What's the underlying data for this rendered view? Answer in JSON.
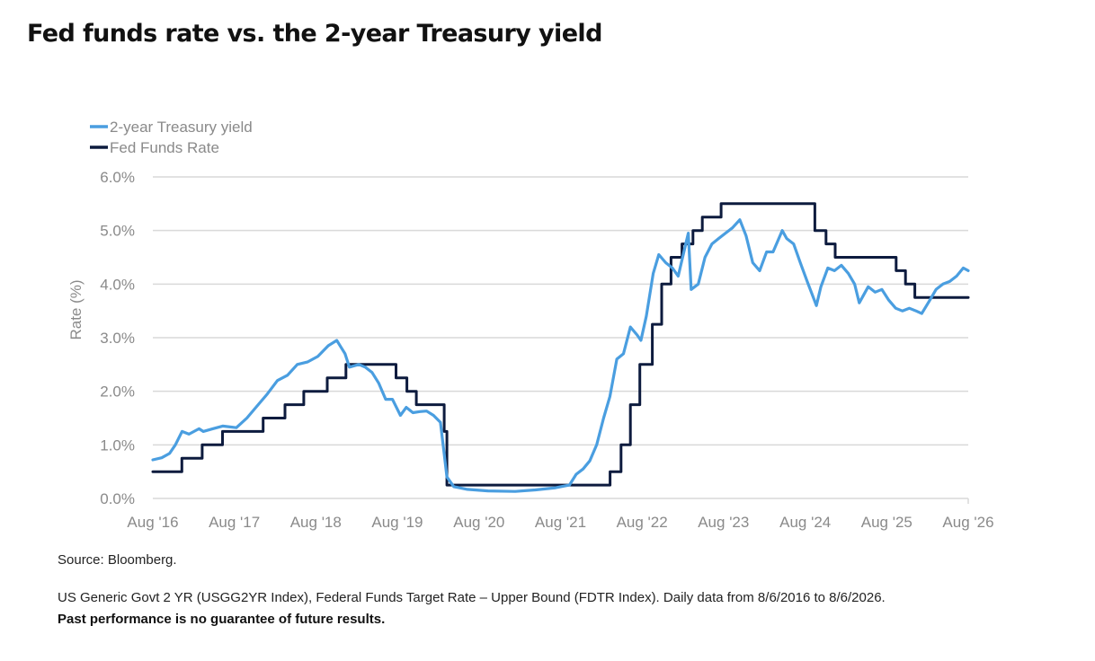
{
  "colors": {
    "treasury": "#4a9ee0",
    "fed": "#0d1b3e",
    "grid": "#d9d9d9",
    "text": "#8a8a8a"
  },
  "chart_data": {
    "type": "line",
    "title": "Fed funds rate vs. the 2-year Treasury yield",
    "ylabel": "Rate (%)",
    "xlabel": "",
    "ylim": [
      0,
      6
    ],
    "xlim": [
      "2016-08-06",
      "2026-08-06"
    ],
    "y_ticks": [
      0,
      1,
      2,
      3,
      4,
      5,
      6
    ],
    "y_tick_labels": [
      "0.0%",
      "1.0%",
      "2.0%",
      "3.0%",
      "4.0%",
      "5.0%",
      "6.0%"
    ],
    "x_tick_labels": [
      "Aug '16",
      "Aug '17",
      "Aug '18",
      "Aug '19",
      "Aug '20",
      "Aug '21",
      "Aug '22",
      "Aug '23",
      "Aug '24",
      "Aug '25",
      "Aug '26"
    ],
    "x_tick_dates": [
      "2016-08-06",
      "2017-08-06",
      "2018-08-06",
      "2019-08-06",
      "2020-08-06",
      "2021-08-06",
      "2022-08-06",
      "2023-08-06",
      "2024-08-06",
      "2025-08-06",
      "2026-08-06"
    ],
    "grid": true,
    "legend": "top-left",
    "series": [
      {
        "name": "2-year Treasury yield",
        "color": "#4a9ee0",
        "points": [
          [
            "2016-08-06",
            0.72
          ],
          [
            "2016-09-15",
            0.76
          ],
          [
            "2016-10-20",
            0.84
          ],
          [
            "2016-11-15",
            1.0
          ],
          [
            "2016-12-15",
            1.25
          ],
          [
            "2017-01-15",
            1.2
          ],
          [
            "2017-03-01",
            1.3
          ],
          [
            "2017-03-20",
            1.25
          ],
          [
            "2017-05-01",
            1.3
          ],
          [
            "2017-06-15",
            1.35
          ],
          [
            "2017-08-15",
            1.32
          ],
          [
            "2017-10-01",
            1.5
          ],
          [
            "2017-11-15",
            1.72
          ],
          [
            "2018-01-01",
            1.95
          ],
          [
            "2018-02-15",
            2.2
          ],
          [
            "2018-04-01",
            2.3
          ],
          [
            "2018-05-15",
            2.5
          ],
          [
            "2018-07-01",
            2.55
          ],
          [
            "2018-08-15",
            2.65
          ],
          [
            "2018-10-01",
            2.85
          ],
          [
            "2018-11-08",
            2.95
          ],
          [
            "2018-12-15",
            2.7
          ],
          [
            "2019-01-03",
            2.45
          ],
          [
            "2019-02-15",
            2.5
          ],
          [
            "2019-03-15",
            2.45
          ],
          [
            "2019-04-15",
            2.35
          ],
          [
            "2019-05-15",
            2.15
          ],
          [
            "2019-06-15",
            1.85
          ],
          [
            "2019-07-15",
            1.85
          ],
          [
            "2019-08-20",
            1.55
          ],
          [
            "2019-09-15",
            1.7
          ],
          [
            "2019-10-15",
            1.6
          ],
          [
            "2019-11-15",
            1.62
          ],
          [
            "2019-12-15",
            1.63
          ],
          [
            "2020-01-15",
            1.55
          ],
          [
            "2020-02-15",
            1.42
          ],
          [
            "2020-03-01",
            0.9
          ],
          [
            "2020-03-15",
            0.4
          ],
          [
            "2020-04-15",
            0.22
          ],
          [
            "2020-06-15",
            0.17
          ],
          [
            "2020-09-15",
            0.14
          ],
          [
            "2021-01-15",
            0.13
          ],
          [
            "2021-04-15",
            0.16
          ],
          [
            "2021-07-15",
            0.2
          ],
          [
            "2021-09-15",
            0.25
          ],
          [
            "2021-10-15",
            0.45
          ],
          [
            "2021-11-15",
            0.55
          ],
          [
            "2021-12-15",
            0.7
          ],
          [
            "2022-01-15",
            1.0
          ],
          [
            "2022-02-15",
            1.5
          ],
          [
            "2022-03-15",
            1.9
          ],
          [
            "2022-04-15",
            2.6
          ],
          [
            "2022-05-15",
            2.7
          ],
          [
            "2022-06-15",
            3.2
          ],
          [
            "2022-07-15",
            3.05
          ],
          [
            "2022-08-01",
            2.95
          ],
          [
            "2022-08-25",
            3.4
          ],
          [
            "2022-09-25",
            4.2
          ],
          [
            "2022-10-20",
            4.55
          ],
          [
            "2022-11-20",
            4.4
          ],
          [
            "2022-12-20",
            4.3
          ],
          [
            "2023-01-15",
            4.15
          ],
          [
            "2023-03-01",
            4.95
          ],
          [
            "2023-03-14",
            3.9
          ],
          [
            "2023-04-15",
            4.0
          ],
          [
            "2023-05-15",
            4.5
          ],
          [
            "2023-06-15",
            4.75
          ],
          [
            "2023-07-15",
            4.85
          ],
          [
            "2023-08-15",
            4.95
          ],
          [
            "2023-09-15",
            5.05
          ],
          [
            "2023-10-18",
            5.2
          ],
          [
            "2023-11-15",
            4.9
          ],
          [
            "2023-12-15",
            4.4
          ],
          [
            "2024-01-15",
            4.25
          ],
          [
            "2024-02-15",
            4.6
          ],
          [
            "2024-03-15",
            4.6
          ],
          [
            "2024-04-25",
            5.0
          ],
          [
            "2024-05-15",
            4.85
          ],
          [
            "2024-06-15",
            4.75
          ],
          [
            "2024-07-15",
            4.4
          ],
          [
            "2024-08-15",
            4.05
          ],
          [
            "2024-09-25",
            3.6
          ],
          [
            "2024-10-15",
            3.95
          ],
          [
            "2024-11-15",
            4.3
          ],
          [
            "2024-12-15",
            4.25
          ],
          [
            "2025-01-15",
            4.35
          ],
          [
            "2025-02-15",
            4.2
          ],
          [
            "2025-03-15",
            4.0
          ],
          [
            "2025-04-05",
            3.65
          ],
          [
            "2025-05-15",
            3.95
          ],
          [
            "2025-06-15",
            3.85
          ],
          [
            "2025-07-15",
            3.9
          ],
          [
            "2025-08-15",
            3.7
          ],
          [
            "2025-09-15",
            3.55
          ],
          [
            "2025-10-15",
            3.5
          ],
          [
            "2025-11-15",
            3.55
          ],
          [
            "2025-12-15",
            3.5
          ],
          [
            "2026-01-10",
            3.45
          ],
          [
            "2026-02-15",
            3.7
          ],
          [
            "2026-03-15",
            3.9
          ],
          [
            "2026-04-15",
            4.0
          ],
          [
            "2026-05-15",
            4.05
          ],
          [
            "2026-06-15",
            4.15
          ],
          [
            "2026-07-15",
            4.3
          ],
          [
            "2026-08-06",
            4.25
          ]
        ]
      },
      {
        "name": "Fed Funds Rate",
        "color": "#0d1b3e",
        "step": true,
        "points": [
          [
            "2016-08-06",
            0.5
          ],
          [
            "2016-12-14",
            0.75
          ],
          [
            "2017-03-15",
            1.0
          ],
          [
            "2017-06-14",
            1.25
          ],
          [
            "2017-12-13",
            1.5
          ],
          [
            "2018-03-21",
            1.75
          ],
          [
            "2018-06-13",
            2.0
          ],
          [
            "2018-09-26",
            2.25
          ],
          [
            "2018-12-19",
            2.5
          ],
          [
            "2019-07-31",
            2.25
          ],
          [
            "2019-09-18",
            2.0
          ],
          [
            "2019-10-30",
            1.75
          ],
          [
            "2020-03-03",
            1.25
          ],
          [
            "2020-03-15",
            0.25
          ],
          [
            "2022-03-16",
            0.5
          ],
          [
            "2022-05-04",
            1.0
          ],
          [
            "2022-06-15",
            1.75
          ],
          [
            "2022-07-27",
            2.5
          ],
          [
            "2022-09-21",
            3.25
          ],
          [
            "2022-11-02",
            4.0
          ],
          [
            "2022-12-14",
            4.5
          ],
          [
            "2023-02-01",
            4.75
          ],
          [
            "2023-03-22",
            5.0
          ],
          [
            "2023-05-03",
            5.25
          ],
          [
            "2023-07-26",
            5.5
          ],
          [
            "2024-09-18",
            5.0
          ],
          [
            "2024-11-07",
            4.75
          ],
          [
            "2024-12-18",
            4.5
          ],
          [
            "2025-09-17",
            4.25
          ],
          [
            "2025-10-29",
            4.0
          ],
          [
            "2025-12-10",
            3.75
          ],
          [
            "2026-08-06",
            3.75
          ]
        ]
      }
    ]
  },
  "source_note": "Source: Bloomberg.",
  "detail_note": "US Generic Govt 2 YR (USGG2YR Index), Federal Funds Target Rate – Upper Bound (FDTR Index). Daily data from 8/6/2016 to 8/6/2026.",
  "disclaimer": "Past performance is no guarantee of future results."
}
